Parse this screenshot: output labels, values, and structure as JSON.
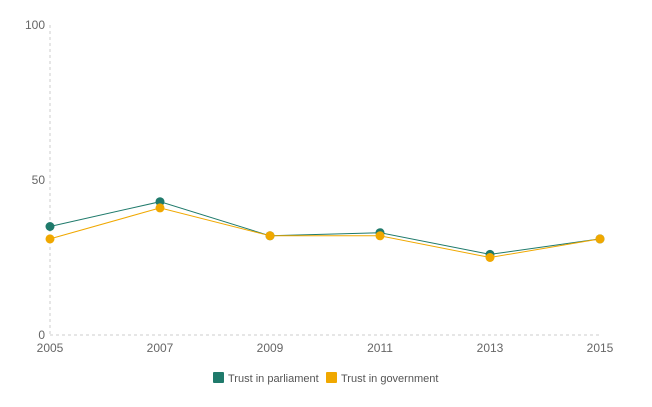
{
  "chart_data": {
    "type": "line",
    "x": [
      "2005",
      "2007",
      "2009",
      "2011",
      "2013",
      "2015"
    ],
    "ylim": [
      0,
      100
    ],
    "yticks": [
      0,
      50,
      100
    ],
    "grid": false,
    "legend_position": "bottom",
    "series": [
      {
        "name": "Trust in parliament",
        "color": "#1f7a6b",
        "values": [
          35,
          43,
          32,
          33,
          26,
          31
        ]
      },
      {
        "name": "Trust in government",
        "color": "#f0a800",
        "values": [
          31,
          41,
          32,
          32,
          25,
          31
        ]
      }
    ]
  }
}
